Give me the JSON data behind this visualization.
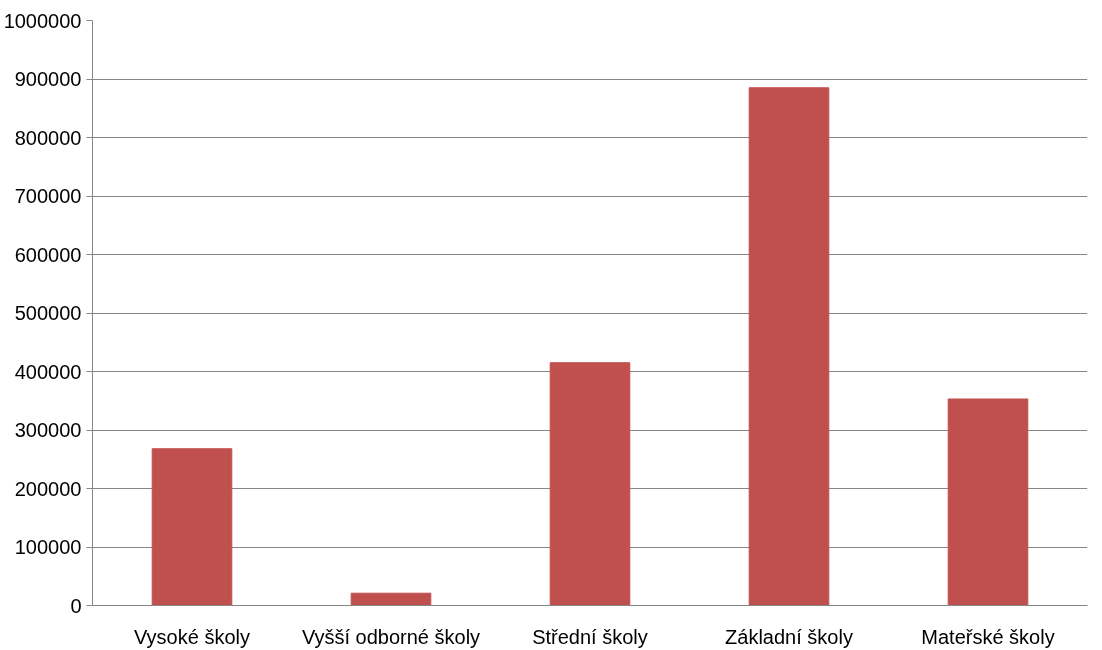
{
  "chart_data": {
    "type": "bar",
    "categories": [
      "Vysoké školy",
      "Vyšší odborné školy",
      "Střední školy",
      "Základní školy",
      "Mateřské školy"
    ],
    "values": [
      268000,
      21000,
      415000,
      885000,
      353000
    ],
    "color": "#c0504d",
    "ylim": [
      0,
      1000000
    ],
    "yticks": [
      0,
      100000,
      200000,
      300000,
      400000,
      500000,
      600000,
      700000,
      800000,
      900000,
      1000000
    ],
    "grid": "y"
  }
}
